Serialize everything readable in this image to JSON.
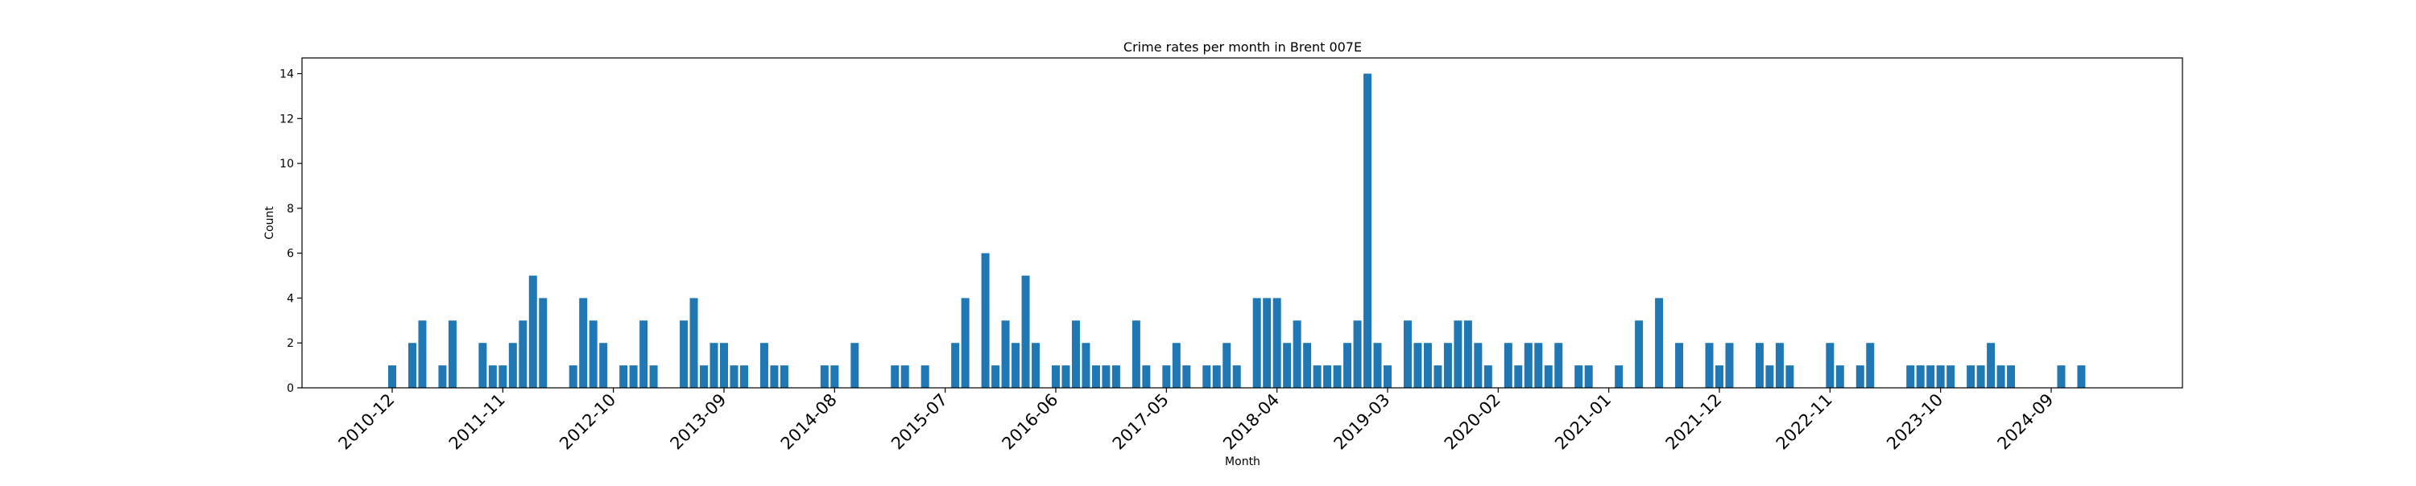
{
  "chart_data": {
    "type": "bar",
    "title": "Crime rates per month in Brent 007E",
    "xlabel": "Month",
    "ylabel": "Count",
    "ylim": [
      0,
      14.7
    ],
    "yticks": [
      0,
      2,
      4,
      6,
      8,
      10,
      12,
      14
    ],
    "xticks": [
      "2010-12",
      "2011-11",
      "2012-10",
      "2013-09",
      "2014-08",
      "2015-07",
      "2016-06",
      "2017-05",
      "2018-04",
      "2019-03",
      "2020-02",
      "2021-01",
      "2021-12",
      "2022-11",
      "2023-10",
      "2024-09"
    ],
    "grid": false,
    "color": "#1f77b4",
    "bars": [
      {
        "x": "2010-12",
        "value": 1
      },
      {
        "x": "2011-02",
        "value": 2
      },
      {
        "x": "2011-03",
        "value": 3
      },
      {
        "x": "2011-05",
        "value": 1
      },
      {
        "x": "2011-06",
        "value": 3
      },
      {
        "x": "2011-09",
        "value": 2
      },
      {
        "x": "2011-10",
        "value": 1
      },
      {
        "x": "2011-11",
        "value": 1
      },
      {
        "x": "2011-12",
        "value": 2
      },
      {
        "x": "2012-01",
        "value": 3
      },
      {
        "x": "2012-02",
        "value": 5
      },
      {
        "x": "2012-03",
        "value": 4
      },
      {
        "x": "2012-06",
        "value": 1
      },
      {
        "x": "2012-07",
        "value": 4
      },
      {
        "x": "2012-08",
        "value": 3
      },
      {
        "x": "2012-09",
        "value": 2
      },
      {
        "x": "2012-11",
        "value": 1
      },
      {
        "x": "2012-12",
        "value": 1
      },
      {
        "x": "2013-01",
        "value": 3
      },
      {
        "x": "2013-02",
        "value": 1
      },
      {
        "x": "2013-05",
        "value": 3
      },
      {
        "x": "2013-06",
        "value": 4
      },
      {
        "x": "2013-07",
        "value": 1
      },
      {
        "x": "2013-08",
        "value": 2
      },
      {
        "x": "2013-09",
        "value": 2
      },
      {
        "x": "2013-10",
        "value": 1
      },
      {
        "x": "2013-11",
        "value": 1
      },
      {
        "x": "2014-01",
        "value": 2
      },
      {
        "x": "2014-02",
        "value": 1
      },
      {
        "x": "2014-03",
        "value": 1
      },
      {
        "x": "2014-07",
        "value": 1
      },
      {
        "x": "2014-08",
        "value": 1
      },
      {
        "x": "2014-10",
        "value": 2
      },
      {
        "x": "2015-02",
        "value": 1
      },
      {
        "x": "2015-03",
        "value": 1
      },
      {
        "x": "2015-05",
        "value": 1
      },
      {
        "x": "2015-08",
        "value": 2
      },
      {
        "x": "2015-09",
        "value": 4
      },
      {
        "x": "2015-11",
        "value": 6
      },
      {
        "x": "2015-12",
        "value": 1
      },
      {
        "x": "2016-01",
        "value": 3
      },
      {
        "x": "2016-02",
        "value": 2
      },
      {
        "x": "2016-03",
        "value": 5
      },
      {
        "x": "2016-04",
        "value": 2
      },
      {
        "x": "2016-06",
        "value": 1
      },
      {
        "x": "2016-07",
        "value": 1
      },
      {
        "x": "2016-08",
        "value": 3
      },
      {
        "x": "2016-09",
        "value": 2
      },
      {
        "x": "2016-10",
        "value": 1
      },
      {
        "x": "2016-11",
        "value": 1
      },
      {
        "x": "2016-12",
        "value": 1
      },
      {
        "x": "2017-02",
        "value": 3
      },
      {
        "x": "2017-03",
        "value": 1
      },
      {
        "x": "2017-05",
        "value": 1
      },
      {
        "x": "2017-06",
        "value": 2
      },
      {
        "x": "2017-07",
        "value": 1
      },
      {
        "x": "2017-09",
        "value": 1
      },
      {
        "x": "2017-10",
        "value": 1
      },
      {
        "x": "2017-11",
        "value": 2
      },
      {
        "x": "2017-12",
        "value": 1
      },
      {
        "x": "2018-02",
        "value": 4
      },
      {
        "x": "2018-03",
        "value": 4
      },
      {
        "x": "2018-04",
        "value": 4
      },
      {
        "x": "2018-05",
        "value": 2
      },
      {
        "x": "2018-06",
        "value": 3
      },
      {
        "x": "2018-07",
        "value": 2
      },
      {
        "x": "2018-08",
        "value": 1
      },
      {
        "x": "2018-09",
        "value": 1
      },
      {
        "x": "2018-10",
        "value": 1
      },
      {
        "x": "2018-11",
        "value": 2
      },
      {
        "x": "2018-12",
        "value": 3
      },
      {
        "x": "2019-01",
        "value": 14
      },
      {
        "x": "2019-02",
        "value": 2
      },
      {
        "x": "2019-03",
        "value": 1
      },
      {
        "x": "2019-05",
        "value": 3
      },
      {
        "x": "2019-06",
        "value": 2
      },
      {
        "x": "2019-07",
        "value": 2
      },
      {
        "x": "2019-08",
        "value": 1
      },
      {
        "x": "2019-09",
        "value": 2
      },
      {
        "x": "2019-10",
        "value": 3
      },
      {
        "x": "2019-11",
        "value": 3
      },
      {
        "x": "2019-12",
        "value": 2
      },
      {
        "x": "2020-01",
        "value": 1
      },
      {
        "x": "2020-03",
        "value": 2
      },
      {
        "x": "2020-04",
        "value": 1
      },
      {
        "x": "2020-05",
        "value": 2
      },
      {
        "x": "2020-06",
        "value": 2
      },
      {
        "x": "2020-07",
        "value": 1
      },
      {
        "x": "2020-08",
        "value": 2
      },
      {
        "x": "2020-10",
        "value": 1
      },
      {
        "x": "2020-11",
        "value": 1
      },
      {
        "x": "2021-02",
        "value": 1
      },
      {
        "x": "2021-04",
        "value": 3
      },
      {
        "x": "2021-06",
        "value": 4
      },
      {
        "x": "2021-08",
        "value": 2
      },
      {
        "x": "2021-11",
        "value": 2
      },
      {
        "x": "2021-12",
        "value": 1
      },
      {
        "x": "2022-01",
        "value": 2
      },
      {
        "x": "2022-04",
        "value": 2
      },
      {
        "x": "2022-05",
        "value": 1
      },
      {
        "x": "2022-06",
        "value": 2
      },
      {
        "x": "2022-07",
        "value": 1
      },
      {
        "x": "2022-11",
        "value": 2
      },
      {
        "x": "2022-12",
        "value": 1
      },
      {
        "x": "2023-02",
        "value": 1
      },
      {
        "x": "2023-03",
        "value": 2
      },
      {
        "x": "2023-07",
        "value": 1
      },
      {
        "x": "2023-08",
        "value": 1
      },
      {
        "x": "2023-09",
        "value": 1
      },
      {
        "x": "2023-10",
        "value": 1
      },
      {
        "x": "2023-11",
        "value": 1
      },
      {
        "x": "2024-01",
        "value": 1
      },
      {
        "x": "2024-02",
        "value": 1
      },
      {
        "x": "2024-03",
        "value": 2
      },
      {
        "x": "2024-04",
        "value": 1
      },
      {
        "x": "2024-05",
        "value": 1
      },
      {
        "x": "2024-10",
        "value": 1
      },
      {
        "x": "2024-12",
        "value": 1
      }
    ]
  }
}
